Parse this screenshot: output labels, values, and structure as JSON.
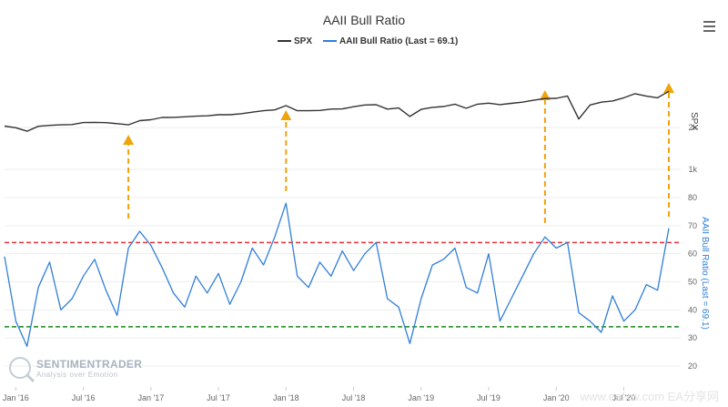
{
  "chart_data": {
    "type": "line",
    "title": "AAII Bull Ratio",
    "legend": {
      "placement": "top-center",
      "entries": [
        {
          "label": "SPX",
          "color": "#333333"
        },
        {
          "label": "AAII Bull Ratio (Last = 69.1)",
          "color": "#2f7ed8"
        }
      ]
    },
    "x_axis": {
      "ticks": [
        "Jan '16",
        "Jul '16",
        "Jan '17",
        "Jul '17",
        "Jan '18",
        "Jul '18",
        "Jan '19",
        "Jul '19",
        "Jan '20",
        "Jul '20"
      ],
      "range": [
        "2015-12",
        "2020-11"
      ]
    },
    "y_axis_spx": {
      "title": "SPX",
      "ticks": [
        "2k",
        "1k"
      ],
      "scale": "log"
    },
    "y_axis_aaii": {
      "title": "AAII Bull Ratio (Last = 69.1)",
      "ticks": [
        "80",
        "70",
        "60",
        "50",
        "40",
        "30",
        "20"
      ],
      "range": [
        20,
        80
      ]
    },
    "reference_lines": [
      {
        "value": 64,
        "color": "#e8303a",
        "style": "dashed"
      },
      {
        "value": 34,
        "color": "#1a8a1a",
        "style": "dashed"
      }
    ],
    "annotations": [
      {
        "type": "arrow-up",
        "color": "#f0a30a",
        "x_date": "2016-11"
      },
      {
        "type": "arrow-up",
        "color": "#f0a30a",
        "x_date": "2018-01"
      },
      {
        "type": "arrow-up",
        "color": "#f0a30a",
        "x_date": "2019-12"
      },
      {
        "type": "arrow-up",
        "color": "#f0a30a",
        "x_date": "2020-11"
      }
    ],
    "series": [
      {
        "name": "SPX",
        "color": "#333333",
        "points": [
          [
            "2015-12",
            2045
          ],
          [
            "2016-01",
            1990
          ],
          [
            "2016-02",
            1880
          ],
          [
            "2016-03",
            2040
          ],
          [
            "2016-04",
            2070
          ],
          [
            "2016-05",
            2090
          ],
          [
            "2016-06",
            2100
          ],
          [
            "2016-07",
            2170
          ],
          [
            "2016-08",
            2175
          ],
          [
            "2016-09",
            2165
          ],
          [
            "2016-10",
            2130
          ],
          [
            "2016-11",
            2090
          ],
          [
            "2016-12",
            2240
          ],
          [
            "2017-01",
            2275
          ],
          [
            "2017-02",
            2360
          ],
          [
            "2017-03",
            2365
          ],
          [
            "2017-04",
            2385
          ],
          [
            "2017-05",
            2410
          ],
          [
            "2017-06",
            2425
          ],
          [
            "2017-07",
            2470
          ],
          [
            "2017-08",
            2470
          ],
          [
            "2017-09",
            2510
          ],
          [
            "2017-10",
            2575
          ],
          [
            "2017-11",
            2640
          ],
          [
            "2017-12",
            2675
          ],
          [
            "2018-01",
            2870
          ],
          [
            "2018-02",
            2640
          ],
          [
            "2018-03",
            2640
          ],
          [
            "2018-04",
            2650
          ],
          [
            "2018-05",
            2710
          ],
          [
            "2018-06",
            2720
          ],
          [
            "2018-07",
            2820
          ],
          [
            "2018-08",
            2900
          ],
          [
            "2018-09",
            2915
          ],
          [
            "2018-10",
            2710
          ],
          [
            "2018-11",
            2760
          ],
          [
            "2018-12",
            2400
          ],
          [
            "2019-01",
            2700
          ],
          [
            "2019-02",
            2790
          ],
          [
            "2019-03",
            2830
          ],
          [
            "2019-04",
            2940
          ],
          [
            "2019-05",
            2750
          ],
          [
            "2019-06",
            2940
          ],
          [
            "2019-07",
            2990
          ],
          [
            "2019-08",
            2920
          ],
          [
            "2019-09",
            2980
          ],
          [
            "2019-10",
            3040
          ],
          [
            "2019-11",
            3140
          ],
          [
            "2019-12",
            3230
          ],
          [
            "2020-01",
            3240
          ],
          [
            "2020-02",
            3370
          ],
          [
            "2020-03",
            2300
          ],
          [
            "2020-04",
            2900
          ],
          [
            "2020-05",
            3040
          ],
          [
            "2020-06",
            3100
          ],
          [
            "2020-07",
            3270
          ],
          [
            "2020-08",
            3500
          ],
          [
            "2020-09",
            3360
          ],
          [
            "2020-10",
            3270
          ],
          [
            "2020-11",
            3640
          ]
        ]
      },
      {
        "name": "AAII Bull Ratio (Last = 69.1)",
        "color": "#2f7ed8",
        "points": [
          [
            "2015-12",
            59
          ],
          [
            "2016-01",
            36
          ],
          [
            "2016-02",
            27
          ],
          [
            "2016-03",
            48
          ],
          [
            "2016-04",
            57
          ],
          [
            "2016-05",
            40
          ],
          [
            "2016-06",
            44
          ],
          [
            "2016-07",
            52
          ],
          [
            "2016-08",
            58
          ],
          [
            "2016-09",
            47
          ],
          [
            "2016-10",
            38
          ],
          [
            "2016-11",
            62
          ],
          [
            "2016-12",
            68
          ],
          [
            "2017-01",
            63
          ],
          [
            "2017-02",
            55
          ],
          [
            "2017-03",
            46
          ],
          [
            "2017-04",
            41
          ],
          [
            "2017-05",
            52
          ],
          [
            "2017-06",
            46
          ],
          [
            "2017-07",
            53
          ],
          [
            "2017-08",
            42
          ],
          [
            "2017-09",
            50
          ],
          [
            "2017-10",
            62
          ],
          [
            "2017-11",
            56
          ],
          [
            "2017-12",
            66
          ],
          [
            "2018-01",
            78
          ],
          [
            "2018-02",
            52
          ],
          [
            "2018-03",
            48
          ],
          [
            "2018-04",
            57
          ],
          [
            "2018-05",
            52
          ],
          [
            "2018-06",
            61
          ],
          [
            "2018-07",
            54
          ],
          [
            "2018-08",
            60
          ],
          [
            "2018-09",
            64
          ],
          [
            "2018-10",
            44
          ],
          [
            "2018-11",
            41
          ],
          [
            "2018-12",
            28
          ],
          [
            "2019-01",
            44
          ],
          [
            "2019-02",
            56
          ],
          [
            "2019-03",
            58
          ],
          [
            "2019-04",
            62
          ],
          [
            "2019-05",
            48
          ],
          [
            "2019-06",
            46
          ],
          [
            "2019-07",
            60
          ],
          [
            "2019-08",
            36
          ],
          [
            "2019-09",
            44
          ],
          [
            "2019-10",
            52
          ],
          [
            "2019-11",
            60
          ],
          [
            "2019-12",
            66
          ],
          [
            "2020-01",
            62
          ],
          [
            "2020-02",
            64
          ],
          [
            "2020-03",
            39
          ],
          [
            "2020-04",
            36
          ],
          [
            "2020-05",
            32
          ],
          [
            "2020-06",
            45
          ],
          [
            "2020-07",
            36
          ],
          [
            "2020-08",
            40
          ],
          [
            "2020-09",
            49
          ],
          [
            "2020-10",
            47
          ],
          [
            "2020-11",
            69.1
          ]
        ]
      }
    ]
  },
  "watermark": {
    "brand": "SENTIMENTRADER",
    "tagline": "Analysis over Emotion"
  },
  "corner_watermark": "www.eafxw.com  EA分享网",
  "colors": {
    "spx": "#333333",
    "aaii": "#2f7ed8",
    "arrow": "#f0a30a",
    "upper": "#e8303a",
    "lower": "#1a8a1a"
  }
}
